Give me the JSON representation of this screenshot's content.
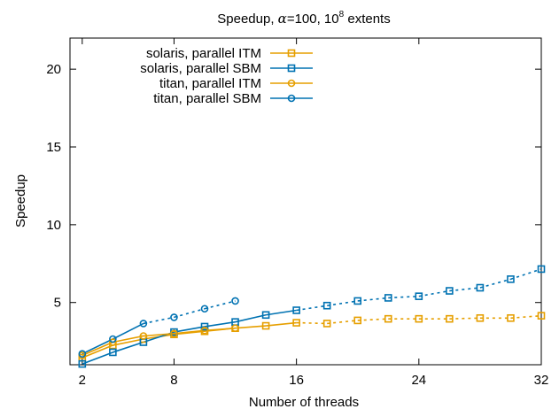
{
  "chart_data": {
    "type": "line",
    "title": {
      "prefix": "Speedup, ",
      "alpha": "α",
      "alpha_value": "=100, 10",
      "exponent": "8",
      "suffix": " extents"
    },
    "xlabel": "Number of threads",
    "ylabel": "Speedup",
    "xlim": [
      1.2,
      32
    ],
    "ylim": [
      1,
      22
    ],
    "xticks": [
      2,
      8,
      16,
      24,
      32
    ],
    "yticks": [
      5,
      10,
      15,
      20
    ],
    "grid": false,
    "legend_position": "top-left",
    "series": [
      {
        "name": "solaris, parallel ITM",
        "color": "#e69f00",
        "marker": "square",
        "points": [
          {
            "x": 2,
            "y": 1.45
          },
          {
            "x": 4,
            "y": 2.25
          },
          {
            "x": 6,
            "y": 2.65
          },
          {
            "x": 8,
            "y": 2.95
          },
          {
            "x": 10,
            "y": 3.15
          },
          {
            "x": 12,
            "y": 3.35
          },
          {
            "x": 14,
            "y": 3.5
          },
          {
            "x": 16,
            "y": 3.7
          },
          {
            "x": 18,
            "y": 3.65
          },
          {
            "x": 20,
            "y": 3.85
          },
          {
            "x": 22,
            "y": 3.95
          },
          {
            "x": 24,
            "y": 3.95
          },
          {
            "x": 26,
            "y": 3.95
          },
          {
            "x": 28,
            "y": 4.0
          },
          {
            "x": 30,
            "y": 4.0
          },
          {
            "x": 32,
            "y": 4.15
          }
        ],
        "solid_until_x": 16
      },
      {
        "name": "solaris, parallel SBM",
        "color": "#0072b2",
        "marker": "square",
        "points": [
          {
            "x": 2,
            "y": 1.05
          },
          {
            "x": 4,
            "y": 1.8
          },
          {
            "x": 6,
            "y": 2.45
          },
          {
            "x": 8,
            "y": 3.1
          },
          {
            "x": 10,
            "y": 3.45
          },
          {
            "x": 12,
            "y": 3.75
          },
          {
            "x": 14,
            "y": 4.2
          },
          {
            "x": 16,
            "y": 4.5
          },
          {
            "x": 18,
            "y": 4.8
          },
          {
            "x": 20,
            "y": 5.1
          },
          {
            "x": 22,
            "y": 5.3
          },
          {
            "x": 24,
            "y": 5.4
          },
          {
            "x": 26,
            "y": 5.75
          },
          {
            "x": 28,
            "y": 5.95
          },
          {
            "x": 30,
            "y": 6.5
          },
          {
            "x": 32,
            "y": 7.15
          }
        ],
        "solid_until_x": 16
      },
      {
        "name": "titan, parallel ITM",
        "color": "#e69f00",
        "marker": "circle",
        "points": [
          {
            "x": 2,
            "y": 1.6
          },
          {
            "x": 4,
            "y": 2.45
          },
          {
            "x": 6,
            "y": 2.85
          },
          {
            "x": 8,
            "y": 3.0
          },
          {
            "x": 10,
            "y": 3.2
          },
          {
            "x": 12,
            "y": 3.35
          }
        ],
        "solid_until_x": 12
      },
      {
        "name": "titan, parallel SBM",
        "color": "#0072b2",
        "marker": "circle",
        "points": [
          {
            "x": 2,
            "y": 1.7
          },
          {
            "x": 4,
            "y": 2.65
          },
          {
            "x": 6,
            "y": 3.65
          },
          {
            "x": 8,
            "y": 4.05
          },
          {
            "x": 10,
            "y": 4.6
          },
          {
            "x": 12,
            "y": 5.1
          }
        ],
        "solid_until_x": 6
      }
    ]
  }
}
